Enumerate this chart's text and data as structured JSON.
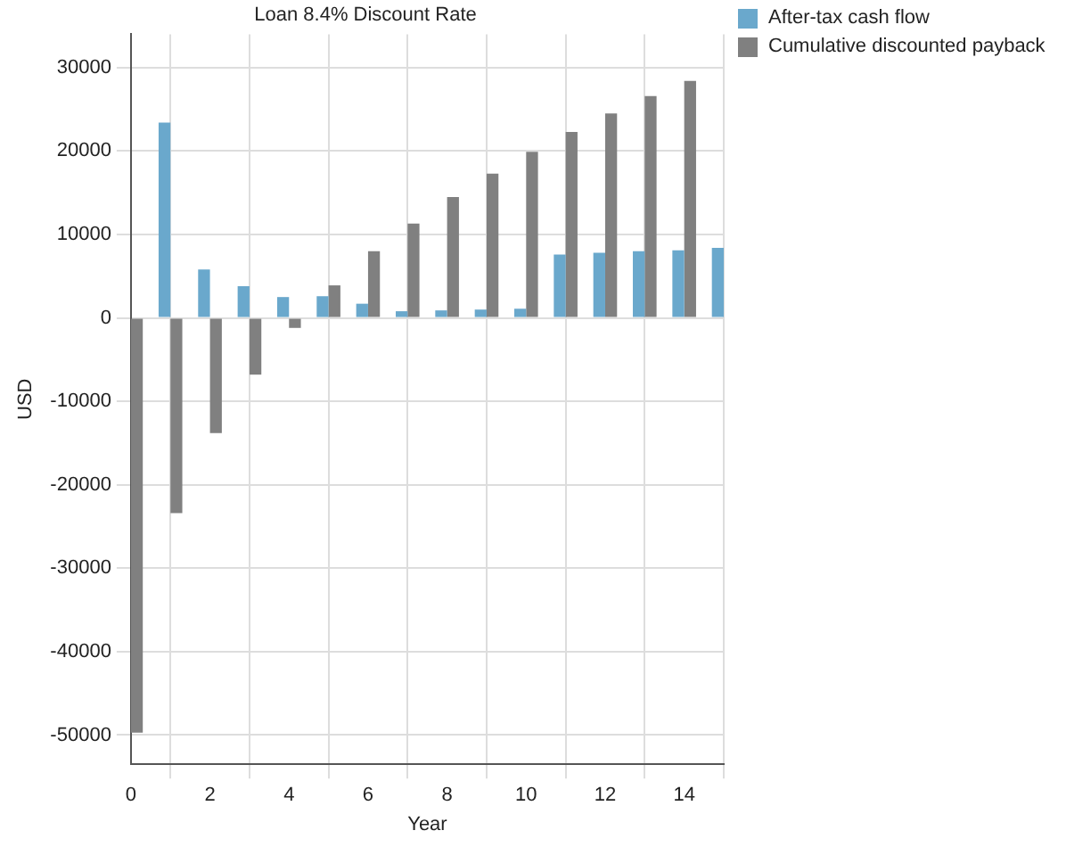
{
  "chart_data": {
    "type": "bar",
    "title": "Loan 8.4% Discount Rate",
    "xlabel": "Year",
    "ylabel": "USD",
    "x": [
      0,
      1,
      2,
      3,
      4,
      5,
      6,
      7,
      8,
      9,
      10,
      11,
      12,
      13,
      14,
      15
    ],
    "series": [
      {
        "name": "After-tax cash flow",
        "color": "#6aa8cc",
        "values": [
          null,
          23400,
          5800,
          3800,
          2500,
          2600,
          1700,
          800,
          900,
          1000,
          1100,
          7600,
          7800,
          8000,
          8100,
          8400
        ]
      },
      {
        "name": "Cumulative discounted payback",
        "color": "#808080",
        "values": [
          -49700,
          -23400,
          -13800,
          -6800,
          -1200,
          3900,
          8000,
          11300,
          14500,
          17300,
          19900,
          22300,
          24500,
          26600,
          28400,
          null
        ]
      }
    ],
    "xlim": [
      0,
      15
    ],
    "xticks": [
      0,
      2,
      4,
      6,
      8,
      10,
      12,
      14
    ],
    "ylim": [
      -53500,
      34000
    ],
    "yticks": [
      -50000,
      -40000,
      -30000,
      -20000,
      -10000,
      0,
      10000,
      20000,
      30000
    ],
    "grid": true,
    "legend": "right"
  }
}
